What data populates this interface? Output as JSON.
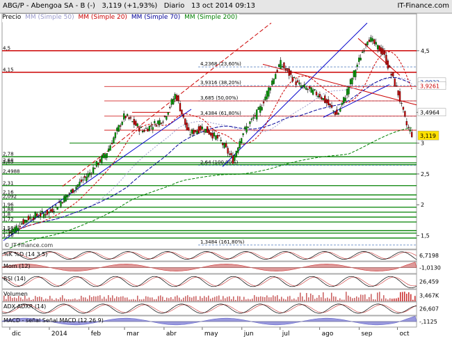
{
  "header": {
    "symbol": "ABG/P",
    "name": "Abengoa SA - B (-)",
    "last": "3,119",
    "change": "(+1,93%)",
    "period": "Diario",
    "date": "13 oct 2014 09:13",
    "brand": "IT-Finance.com",
    "watermark": "© IT-Finance.com"
  },
  "legend": {
    "price": "Precio",
    "mm50": "MM (Simple 50)",
    "mm20": "MM (Simple 20)",
    "mm70": "MM (Simple 70)",
    "mm200": "MM (Simple 200)"
  },
  "colors": {
    "candle_up": "#00a000",
    "candle_down": "#cc0000",
    "mm20": "#cc0000",
    "mm50": "#9999cc",
    "mm70": "#000099",
    "mm200": "#008000",
    "trend_red": "#cc0000",
    "trend_blue": "#0000cc",
    "hline_green": "#008000",
    "hline_red": "#cc0000",
    "fib_line": "#7799cc",
    "last_price_box": "#ffe000"
  },
  "chart_data": [
    {
      "type": "candlestick",
      "title": "ABG/P - Abengoa SA - B (-)",
      "x_months": [
        "dic",
        "2014",
        "feb",
        "mar",
        "abr",
        "may",
        "jun",
        "jul",
        "ago",
        "sep",
        "oct"
      ],
      "ylim": [
        1.28,
        4.95
      ],
      "y_ticks": [
        "4,5",
        "3,5",
        "3",
        "2,5",
        "2",
        "1,5"
      ],
      "left_levels": [
        "4,5",
        "4,15",
        "2,78",
        "2,68",
        "2,65",
        "2,4988",
        "2,31",
        "2,16",
        "2,092",
        "1,96",
        "1,88",
        "1,8",
        "1,72",
        "1,58",
        "1,54",
        "1,46"
      ],
      "fib_levels": [
        {
          "label": "4,2368 (23,60%)",
          "value": 4.2368
        },
        {
          "label": "3,9316 (38,20%)",
          "value": 3.9316
        },
        {
          "label": "3,685 (50,00%)",
          "value": 3.685
        },
        {
          "label": "3,4384 (61,80%)",
          "value": 3.4384
        },
        {
          "label": "2,64 (100,00%)",
          "value": 2.64
        },
        {
          "label": "1,3484 (161,80%)",
          "value": 1.3484
        }
      ],
      "right_labels": [
        "3,9922",
        "3,9261",
        "3,4964"
      ],
      "last_price": "3,119",
      "close_points": [
        {
          "date": "2013-12-01",
          "close": 1.55
        },
        {
          "date": "2013-12-15",
          "close": 1.78
        },
        {
          "date": "2014-01-01",
          "close": 1.88
        },
        {
          "date": "2014-01-15",
          "close": 2.15
        },
        {
          "date": "2014-02-01",
          "close": 2.5
        },
        {
          "date": "2014-02-15",
          "close": 2.85
        },
        {
          "date": "2014-03-01",
          "close": 3.45
        },
        {
          "date": "2014-03-15",
          "close": 3.2
        },
        {
          "date": "2014-04-01",
          "close": 3.4
        },
        {
          "date": "2014-04-10",
          "close": 3.8
        },
        {
          "date": "2014-04-20",
          "close": 3.15
        },
        {
          "date": "2014-05-01",
          "close": 3.25
        },
        {
          "date": "2014-05-15",
          "close": 3.05
        },
        {
          "date": "2014-05-25",
          "close": 2.72
        },
        {
          "date": "2014-06-01",
          "close": 3.15
        },
        {
          "date": "2014-06-15",
          "close": 3.55
        },
        {
          "date": "2014-07-01",
          "close": 4.3
        },
        {
          "date": "2014-07-15",
          "close": 3.95
        },
        {
          "date": "2014-08-01",
          "close": 3.78
        },
        {
          "date": "2014-08-15",
          "close": 3.45
        },
        {
          "date": "2014-09-01",
          "close": 4.35
        },
        {
          "date": "2014-09-08",
          "close": 4.72
        },
        {
          "date": "2014-09-20",
          "close": 4.45
        },
        {
          "date": "2014-10-01",
          "close": 3.85
        },
        {
          "date": "2014-10-08",
          "close": 3.3
        },
        {
          "date": "2014-10-13",
          "close": 3.119
        }
      ]
    },
    {
      "type": "line",
      "name": "%K  %D (14 3 5)",
      "value_label": "6,7198"
    },
    {
      "type": "area",
      "name": "Mom (12)",
      "value_label": "-1,0130"
    },
    {
      "type": "line",
      "name": "RSI (14)",
      "value_label": "26,459"
    },
    {
      "type": "bar",
      "name": "Volumen",
      "value_label": "3,467K"
    },
    {
      "type": "line",
      "name": "ADX  ADXR (14)",
      "value_label": "26,607"
    },
    {
      "type": "bar",
      "name": "MACD - señal   Señal   MACD (12 26 9)",
      "value_label": "-,1125"
    }
  ],
  "indicators": [
    {
      "name": "%K  %D (14 3 5)",
      "value": "6,7198"
    },
    {
      "name": "Mom (12)",
      "value": "-1,0130"
    },
    {
      "name": "RSI (14)",
      "value": "26,459"
    },
    {
      "name": "Volumen",
      "value": "3,467K"
    },
    {
      "name": "ADX  ADXR (14)",
      "value": "26,607"
    },
    {
      "name": "MACD - señal   Señal   MACD (12 26 9)",
      "value": "-,1125"
    }
  ]
}
